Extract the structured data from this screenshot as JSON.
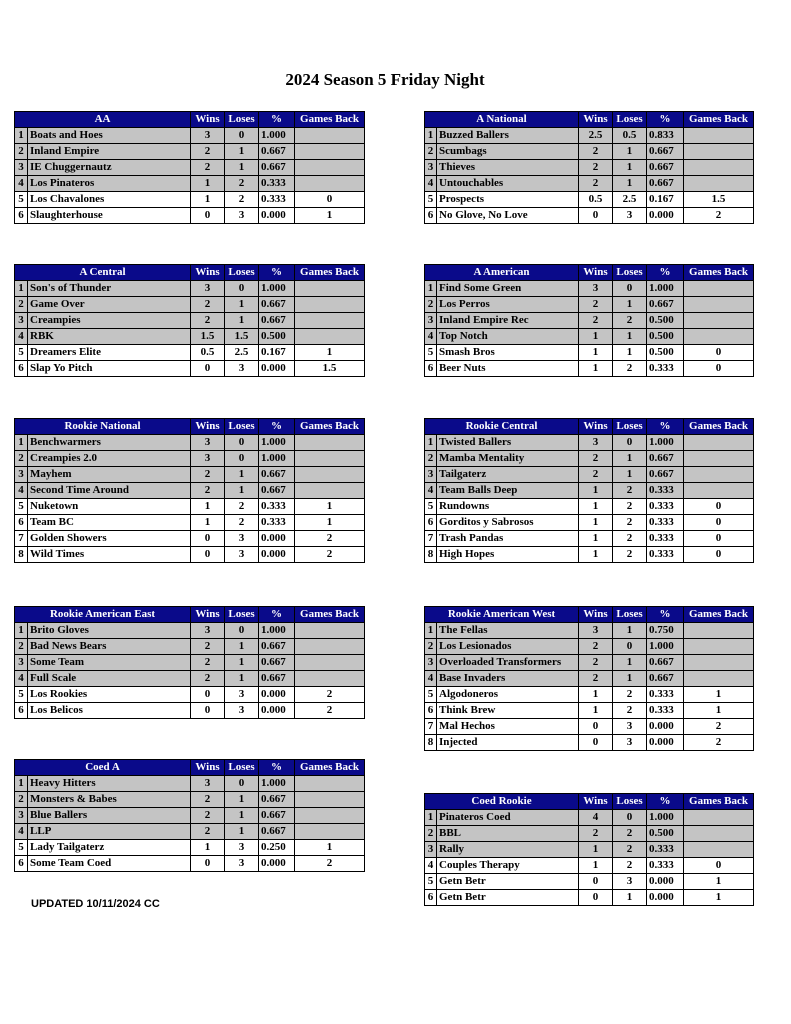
{
  "title": "2024 Season 5 Friday Night",
  "updated": "UPDATED 10/11/2024 CC",
  "tables": [
    {
      "header": [
        "AA",
        "Wins",
        "Loses",
        "%",
        "Games Back"
      ],
      "rows": [
        [
          "1",
          "Boats and Hoes",
          "3",
          "0",
          "1.000",
          null
        ],
        [
          "2",
          "Inland Empire",
          "2",
          "1",
          "0.667",
          null
        ],
        [
          "3",
          "IE Chuggernautz",
          "2",
          "1",
          "0.667",
          null
        ],
        [
          "4",
          "Los Pinateros",
          "1",
          "2",
          "0.333",
          null
        ],
        [
          "5",
          "Los Chavalones",
          "1",
          "2",
          "0.333",
          "0"
        ],
        [
          "6",
          "Slaughterhouse",
          "0",
          "3",
          "0.000",
          "1"
        ]
      ]
    },
    {
      "header": [
        "A National",
        "Wins",
        "Loses",
        "%",
        "Games Back"
      ],
      "rows": [
        [
          "1",
          "Buzzed Ballers",
          "2.5",
          "0.5",
          "0.833",
          null
        ],
        [
          "2",
          "Scumbags",
          "2",
          "1",
          "0.667",
          null
        ],
        [
          "3",
          "Thieves",
          "2",
          "1",
          "0.667",
          null
        ],
        [
          "4",
          "Untouchables",
          "2",
          "1",
          "0.667",
          null
        ],
        [
          "5",
          "Prospects",
          "0.5",
          "2.5",
          "0.167",
          "1.5"
        ],
        [
          "6",
          "No Glove, No Love",
          "0",
          "3",
          "0.000",
          "2"
        ]
      ]
    },
    {
      "header": [
        "A Central",
        "Wins",
        "Loses",
        "%",
        "Games Back"
      ],
      "rows": [
        [
          "1",
          "Son's of Thunder",
          "3",
          "0",
          "1.000",
          null
        ],
        [
          "2",
          "Game Over",
          "2",
          "1",
          "0.667",
          null
        ],
        [
          "3",
          "Creampies",
          "2",
          "1",
          "0.667",
          null
        ],
        [
          "4",
          "RBK",
          "1.5",
          "1.5",
          "0.500",
          null
        ],
        [
          "5",
          "Dreamers Elite",
          "0.5",
          "2.5",
          "0.167",
          "1"
        ],
        [
          "6",
          "Slap Yo Pitch",
          "0",
          "3",
          "0.000",
          "1.5"
        ]
      ]
    },
    {
      "header": [
        "A American",
        "Wins",
        "Loses",
        "%",
        "Games Back"
      ],
      "rows": [
        [
          "1",
          "Find Some Green",
          "3",
          "0",
          "1.000",
          null
        ],
        [
          "2",
          "Los Perros",
          "2",
          "1",
          "0.667",
          null
        ],
        [
          "3",
          "Inland Empire Rec",
          "2",
          "2",
          "0.500",
          null
        ],
        [
          "4",
          "Top Notch",
          "1",
          "1",
          "0.500",
          null
        ],
        [
          "5",
          "Smash Bros",
          "1",
          "1",
          "0.500",
          "0"
        ],
        [
          "6",
          "Beer Nuts",
          "1",
          "2",
          "0.333",
          "0"
        ]
      ]
    },
    {
      "header": [
        "Rookie National",
        "Wins",
        "Loses",
        "%",
        "Games Back"
      ],
      "rows": [
        [
          "1",
          "Benchwarmers",
          "3",
          "0",
          "1.000",
          null
        ],
        [
          "2",
          "Creampies 2.0",
          "3",
          "0",
          "1.000",
          null
        ],
        [
          "3",
          "Mayhem",
          "2",
          "1",
          "0.667",
          null
        ],
        [
          "4",
          "Second Time Around",
          "2",
          "1",
          "0.667",
          null
        ],
        [
          "5",
          "Nuketown",
          "1",
          "2",
          "0.333",
          "1"
        ],
        [
          "6",
          "Team BC",
          "1",
          "2",
          "0.333",
          "1"
        ],
        [
          "7",
          "Golden Showers",
          "0",
          "3",
          "0.000",
          "2"
        ],
        [
          "8",
          "Wild Times",
          "0",
          "3",
          "0.000",
          "2"
        ]
      ]
    },
    {
      "header": [
        "Rookie Central",
        "Wins",
        "Loses",
        "%",
        "Games Back"
      ],
      "rows": [
        [
          "1",
          "Twisted Ballers",
          "3",
          "0",
          "1.000",
          null
        ],
        [
          "2",
          "Mamba Mentality",
          "2",
          "1",
          "0.667",
          null
        ],
        [
          "3",
          "Tailgaterz",
          "2",
          "1",
          "0.667",
          null
        ],
        [
          "4",
          "Team Balls Deep",
          "1",
          "2",
          "0.333",
          null
        ],
        [
          "5",
          "Rundowns",
          "1",
          "2",
          "0.333",
          "0"
        ],
        [
          "6",
          "Gorditos y Sabrosos",
          "1",
          "2",
          "0.333",
          "0"
        ],
        [
          "7",
          "Trash Pandas",
          "1",
          "2",
          "0.333",
          "0"
        ],
        [
          "8",
          "High Hopes",
          "1",
          "2",
          "0.333",
          "0"
        ]
      ]
    },
    {
      "header": [
        "Rookie American East",
        "Wins",
        "Loses",
        "%",
        "Games Back"
      ],
      "rows": [
        [
          "1",
          "Brito Gloves",
          "3",
          "0",
          "1.000",
          null
        ],
        [
          "2",
          "Bad News Bears",
          "2",
          "1",
          "0.667",
          null
        ],
        [
          "3",
          "Some Team",
          "2",
          "1",
          "0.667",
          null
        ],
        [
          "4",
          "Full Scale",
          "2",
          "1",
          "0.667",
          null
        ],
        [
          "5",
          "Los Rookies",
          "0",
          "3",
          "0.000",
          "2"
        ],
        [
          "6",
          "Los Belicos",
          "0",
          "3",
          "0.000",
          "2"
        ]
      ]
    },
    {
      "header": [
        "Rookie American West",
        "Wins",
        "Loses",
        "%",
        "Games Back"
      ],
      "rows": [
        [
          "1",
          "The Fellas",
          "3",
          "1",
          "0.750",
          null
        ],
        [
          "2",
          "Los Lesionados",
          "2",
          "0",
          "1.000",
          null
        ],
        [
          "3",
          "Overloaded Transformers",
          "2",
          "1",
          "0.667",
          null
        ],
        [
          "4",
          "Base Invaders",
          "2",
          "1",
          "0.667",
          null
        ],
        [
          "5",
          "Algodoneros",
          "1",
          "2",
          "0.333",
          "1"
        ],
        [
          "6",
          "Think Brew",
          "1",
          "2",
          "0.333",
          "1"
        ],
        [
          "7",
          "Mal Hechos",
          "0",
          "3",
          "0.000",
          "2"
        ],
        [
          "8",
          "Injected",
          "0",
          "3",
          "0.000",
          "2"
        ]
      ]
    },
    {
      "header": [
        "Coed A",
        "Wins",
        "Loses",
        "%",
        "Games Back"
      ],
      "rows": [
        [
          "1",
          "Heavy Hitters",
          "3",
          "0",
          "1.000",
          null
        ],
        [
          "2",
          "Monsters & Babes",
          "2",
          "1",
          "0.667",
          null
        ],
        [
          "3",
          "Blue Ballers",
          "2",
          "1",
          "0.667",
          null
        ],
        [
          "4",
          "LLP",
          "2",
          "1",
          "0.667",
          null
        ],
        [
          "5",
          "Lady Tailgaterz",
          "1",
          "3",
          "0.250",
          "1"
        ],
        [
          "6",
          "Some Team Coed",
          "0",
          "3",
          "0.000",
          "2"
        ]
      ]
    },
    {
      "header": [
        "Coed Rookie",
        "Wins",
        "Loses",
        "%",
        "Games Back"
      ],
      "rows": [
        [
          "1",
          "Pinateros Coed",
          "4",
          "0",
          "1.000",
          null
        ],
        [
          "2",
          "BBL",
          "2",
          "2",
          "0.500",
          null
        ],
        [
          "3",
          "Rally",
          "1",
          "2",
          "0.333",
          null
        ],
        [
          "4",
          "Couples Therapy",
          "1",
          "2",
          "0.333",
          "0"
        ],
        [
          "5",
          "Getn Betr",
          "0",
          "3",
          "0.000",
          "1"
        ],
        [
          "6",
          "Getn Betr",
          "0",
          "1",
          "0.000",
          "1"
        ]
      ]
    }
  ]
}
